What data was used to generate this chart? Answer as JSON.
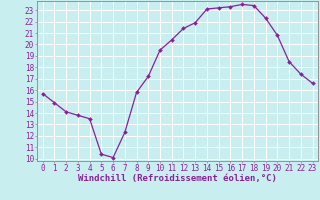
{
  "x": [
    0,
    1,
    2,
    3,
    4,
    5,
    6,
    7,
    8,
    9,
    10,
    11,
    12,
    13,
    14,
    15,
    16,
    17,
    18,
    19,
    20,
    21,
    22,
    23
  ],
  "y": [
    15.7,
    14.9,
    14.1,
    13.8,
    13.5,
    10.4,
    10.1,
    12.3,
    15.8,
    17.2,
    19.5,
    20.4,
    21.4,
    21.9,
    23.1,
    23.2,
    23.3,
    23.5,
    23.4,
    22.3,
    20.8,
    18.5,
    17.4,
    16.6
  ],
  "line_color": "#882299",
  "marker": "D",
  "marker_size": 2.0,
  "bg_color": "#c8eef0",
  "grid_color": "#ffffff",
  "xlabel": "Windchill (Refroidissement éolien,°C)",
  "xlim": [
    -0.5,
    23.5
  ],
  "ylim": [
    9.8,
    23.8
  ],
  "yticks": [
    10,
    11,
    12,
    13,
    14,
    15,
    16,
    17,
    18,
    19,
    20,
    21,
    22,
    23
  ],
  "xticks": [
    0,
    1,
    2,
    3,
    4,
    5,
    6,
    7,
    8,
    9,
    10,
    11,
    12,
    13,
    14,
    15,
    16,
    17,
    18,
    19,
    20,
    21,
    22,
    23
  ],
  "tick_label_color": "#882299",
  "tick_label_fontsize": 5.5,
  "xlabel_fontsize": 6.5,
  "xlabel_color": "#882299",
  "spine_color": "#888888",
  "line_width": 0.9
}
